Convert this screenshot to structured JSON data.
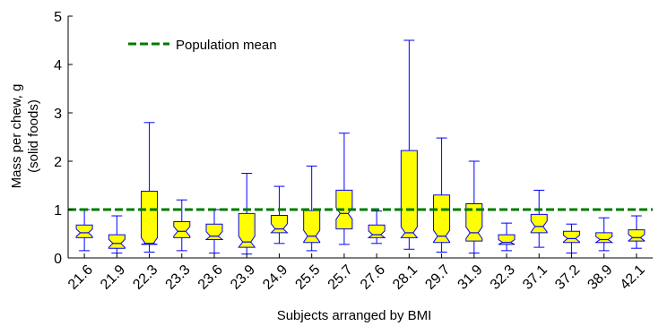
{
  "chart_data": {
    "type": "box",
    "title": "",
    "xlabel": "Subjects arranged by BMI",
    "ylabel_lines": [
      "Mass per chew, g",
      "(solid foods)"
    ],
    "ylim": [
      0,
      5
    ],
    "yticks": [
      0,
      1,
      2,
      3,
      4,
      5
    ],
    "grid": false,
    "categories": [
      "21.6",
      "21.9",
      "22.3",
      "23.3",
      "23.6",
      "23.9",
      "24.9",
      "25.5",
      "25.7",
      "27.6",
      "28.1",
      "29.7",
      "31.9",
      "32.3",
      "37.1",
      "37.2",
      "38.9",
      "42.1"
    ],
    "boxes": [
      {
        "whisker_low": 0.15,
        "q1": 0.42,
        "median": 0.52,
        "q3": 0.68,
        "whisker_high": 1.0
      },
      {
        "whisker_low": 0.1,
        "q1": 0.2,
        "median": 0.3,
        "q3": 0.48,
        "whisker_high": 0.87
      },
      {
        "whisker_low": 0.12,
        "q1": 0.28,
        "median": 0.3,
        "q3": 1.38,
        "whisker_high": 2.8
      },
      {
        "whisker_low": 0.15,
        "q1": 0.42,
        "median": 0.55,
        "q3": 0.75,
        "whisker_high": 1.2
      },
      {
        "whisker_low": 0.1,
        "q1": 0.38,
        "median": 0.45,
        "q3": 0.7,
        "whisker_high": 1.0
      },
      {
        "whisker_low": 0.08,
        "q1": 0.22,
        "median": 0.33,
        "q3": 0.92,
        "whisker_high": 1.75
      },
      {
        "whisker_low": 0.3,
        "q1": 0.52,
        "median": 0.6,
        "q3": 0.88,
        "whisker_high": 1.48
      },
      {
        "whisker_low": 0.15,
        "q1": 0.32,
        "median": 0.45,
        "q3": 0.98,
        "whisker_high": 1.9
      },
      {
        "whisker_low": 0.28,
        "q1": 0.6,
        "median": 0.92,
        "q3": 1.4,
        "whisker_high": 2.58
      },
      {
        "whisker_low": 0.3,
        "q1": 0.42,
        "median": 0.48,
        "q3": 0.68,
        "whisker_high": 0.97
      },
      {
        "whisker_low": 0.18,
        "q1": 0.42,
        "median": 0.52,
        "q3": 2.22,
        "whisker_high": 4.5
      },
      {
        "whisker_low": 0.12,
        "q1": 0.32,
        "median": 0.45,
        "q3": 1.3,
        "whisker_high": 2.48
      },
      {
        "whisker_low": 0.1,
        "q1": 0.35,
        "median": 0.52,
        "q3": 1.12,
        "whisker_high": 2.0
      },
      {
        "whisker_low": 0.15,
        "q1": 0.28,
        "median": 0.32,
        "q3": 0.48,
        "whisker_high": 0.72
      },
      {
        "whisker_low": 0.22,
        "q1": 0.52,
        "median": 0.65,
        "q3": 0.9,
        "whisker_high": 1.4
      },
      {
        "whisker_low": 0.1,
        "q1": 0.32,
        "median": 0.4,
        "q3": 0.55,
        "whisker_high": 0.7
      },
      {
        "whisker_low": 0.15,
        "q1": 0.32,
        "median": 0.38,
        "q3": 0.52,
        "whisker_high": 0.83
      },
      {
        "whisker_low": 0.2,
        "q1": 0.35,
        "median": 0.42,
        "q3": 0.58,
        "whisker_high": 0.87
      }
    ],
    "reference_line": {
      "label": "Population mean",
      "value": 1.0,
      "color": "#007a00",
      "style": "dashed"
    },
    "legend_position": "top-left",
    "colors": {
      "box_fill": "#ffff00",
      "box_edge": "#0000ff",
      "axis": "#000000"
    }
  }
}
